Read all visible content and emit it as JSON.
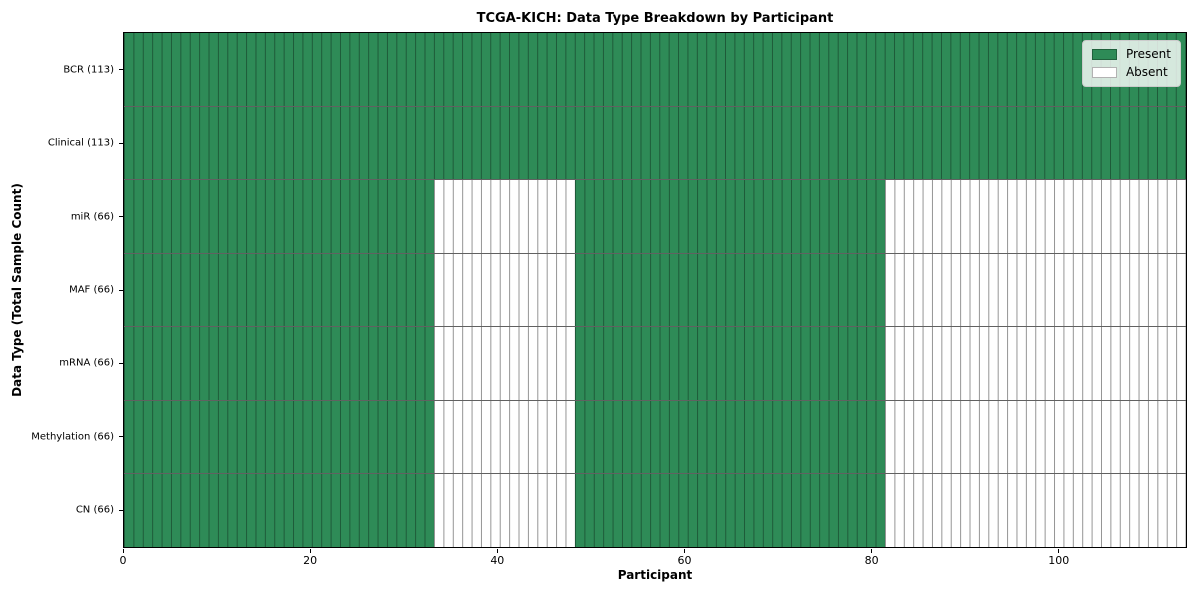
{
  "chart_data": {
    "type": "heatmap",
    "title": "TCGA-KICH: Data Type Breakdown by Participant",
    "xlabel": "Participant",
    "ylabel": "Data Type (Total Sample Count)",
    "x_ticks": [
      0,
      20,
      40,
      60,
      80,
      100
    ],
    "xlim": [
      0,
      113.7
    ],
    "n_participants": 113,
    "grid": false,
    "legend": {
      "position": "upper right",
      "entries": [
        {
          "label": "Present",
          "state": "present"
        },
        {
          "label": "Absent",
          "state": "absent"
        }
      ]
    },
    "colors": {
      "present": "#2e8b57",
      "absent": "#ffffff",
      "cell_edge_on_present": "rgba(0,0,0,0.35)",
      "cell_edge_on_absent": "rgba(0,0,0,0.42)",
      "row_divider": "rgba(0,0,0,0.62)"
    },
    "rows": [
      {
        "data_type": "BCR",
        "label": "BCR (113)",
        "total_samples": 113,
        "segments": [
          {
            "state": "present",
            "start": 0,
            "end": 113
          }
        ]
      },
      {
        "data_type": "Clinical",
        "label": "Clinical (113)",
        "total_samples": 113,
        "segments": [
          {
            "state": "present",
            "start": 0,
            "end": 113
          }
        ]
      },
      {
        "data_type": "miR",
        "label": "miR (66)",
        "total_samples": 66,
        "segments": [
          {
            "state": "present",
            "start": 0,
            "end": 33
          },
          {
            "state": "absent",
            "start": 33,
            "end": 48
          },
          {
            "state": "present",
            "start": 48,
            "end": 81
          },
          {
            "state": "absent",
            "start": 81,
            "end": 113
          }
        ]
      },
      {
        "data_type": "MAF",
        "label": "MAF (66)",
        "total_samples": 66,
        "segments": [
          {
            "state": "present",
            "start": 0,
            "end": 33
          },
          {
            "state": "absent",
            "start": 33,
            "end": 48
          },
          {
            "state": "present",
            "start": 48,
            "end": 81
          },
          {
            "state": "absent",
            "start": 81,
            "end": 113
          }
        ]
      },
      {
        "data_type": "mRNA",
        "label": "mRNA (66)",
        "total_samples": 66,
        "segments": [
          {
            "state": "present",
            "start": 0,
            "end": 33
          },
          {
            "state": "absent",
            "start": 33,
            "end": 48
          },
          {
            "state": "present",
            "start": 48,
            "end": 81
          },
          {
            "state": "absent",
            "start": 81,
            "end": 113
          }
        ]
      },
      {
        "data_type": "Methylation",
        "label": "Methylation (66)",
        "total_samples": 66,
        "segments": [
          {
            "state": "present",
            "start": 0,
            "end": 33
          },
          {
            "state": "absent",
            "start": 33,
            "end": 48
          },
          {
            "state": "present",
            "start": 48,
            "end": 81
          },
          {
            "state": "absent",
            "start": 81,
            "end": 113
          }
        ]
      },
      {
        "data_type": "CN",
        "label": "CN (66)",
        "total_samples": 66,
        "segments": [
          {
            "state": "present",
            "start": 0,
            "end": 33
          },
          {
            "state": "absent",
            "start": 33,
            "end": 48
          },
          {
            "state": "present",
            "start": 48,
            "end": 81
          },
          {
            "state": "absent",
            "start": 81,
            "end": 113
          }
        ]
      }
    ]
  }
}
